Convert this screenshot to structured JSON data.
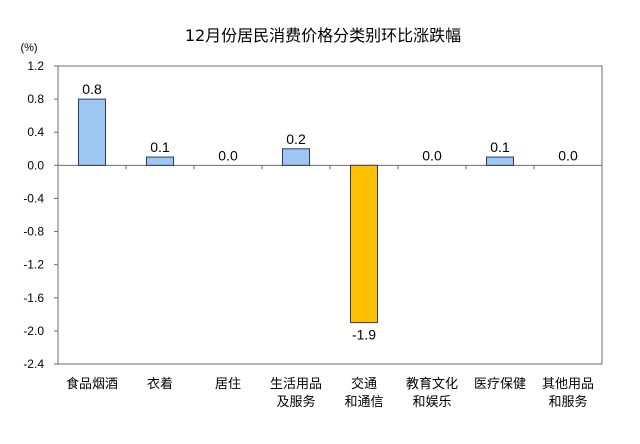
{
  "chart_data": {
    "type": "bar",
    "title": "12月份居民消费价格分类别环比涨跌幅",
    "ylabel": "(%)",
    "categories": [
      "食品烟酒",
      "衣着",
      "居住",
      "生活用品及服务",
      "交通和通信",
      "教育文化和娱乐",
      "医疗保健",
      "其他用品和服务"
    ],
    "values": [
      0.8,
      0.1,
      0.0,
      0.2,
      -1.9,
      0.0,
      0.1,
      0.0
    ],
    "data_labels": [
      "0.8",
      "0.1",
      "0.0",
      "0.2",
      "-1.9",
      "0.0",
      "0.1",
      "0.0"
    ],
    "ylim": [
      -2.4,
      1.2
    ],
    "ytick_labels": [
      "1.2",
      "0.8",
      "0.4",
      "0.0",
      "-0.4",
      "-0.8",
      "-1.2",
      "-1.6",
      "-2.0",
      "-2.4"
    ],
    "grid": false,
    "legend": false,
    "colors": {
      "positive_bar": "#9DC6F0",
      "negative_bar": "#FFC000",
      "bar_outline": "#2E3A66",
      "axis": "#6E6E6E"
    }
  }
}
